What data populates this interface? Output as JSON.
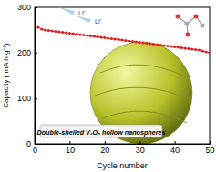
{
  "chart_data": {
    "type": "line",
    "x_label": "Cycle number",
    "y_label": "Capacity ( mA h g⁻¹)",
    "annotations": [
      "Double-shelled V₂O₅ hollow nanospheres",
      "Li⁺",
      "Li⁺"
    ],
    "x": [
      1,
      2,
      3,
      4,
      5,
      6,
      7,
      8,
      9,
      10,
      11,
      12,
      13,
      14,
      15,
      16,
      17,
      18,
      19,
      20,
      21,
      22,
      23,
      24,
      25,
      26,
      27,
      28,
      29,
      30,
      31,
      32,
      33,
      34,
      35,
      36,
      37,
      38,
      39,
      40,
      41,
      42,
      43,
      44,
      45,
      46,
      47,
      48,
      49,
      50
    ],
    "series": [
      {
        "name": "Capacity",
        "color": "#e02020",
        "marker": "circle",
        "values": [
          256,
          252,
          250,
          249,
          248,
          247,
          246,
          245,
          244,
          243,
          242,
          241,
          240,
          239,
          238,
          237,
          236,
          235,
          234,
          233,
          232,
          231,
          230,
          229,
          228,
          227,
          226,
          225,
          224,
          223,
          222,
          221,
          220,
          219,
          218,
          217,
          216,
          215,
          214,
          213,
          212,
          211,
          210,
          209,
          208,
          207,
          206,
          204,
          202,
          200
        ]
      }
    ],
    "xlim": [
      0,
      50
    ],
    "ylim": [
      0,
      300
    ],
    "xticks": [
      0,
      10,
      20,
      30,
      40,
      50
    ],
    "yticks": [
      0,
      100,
      200,
      300
    ],
    "grid": false
  }
}
